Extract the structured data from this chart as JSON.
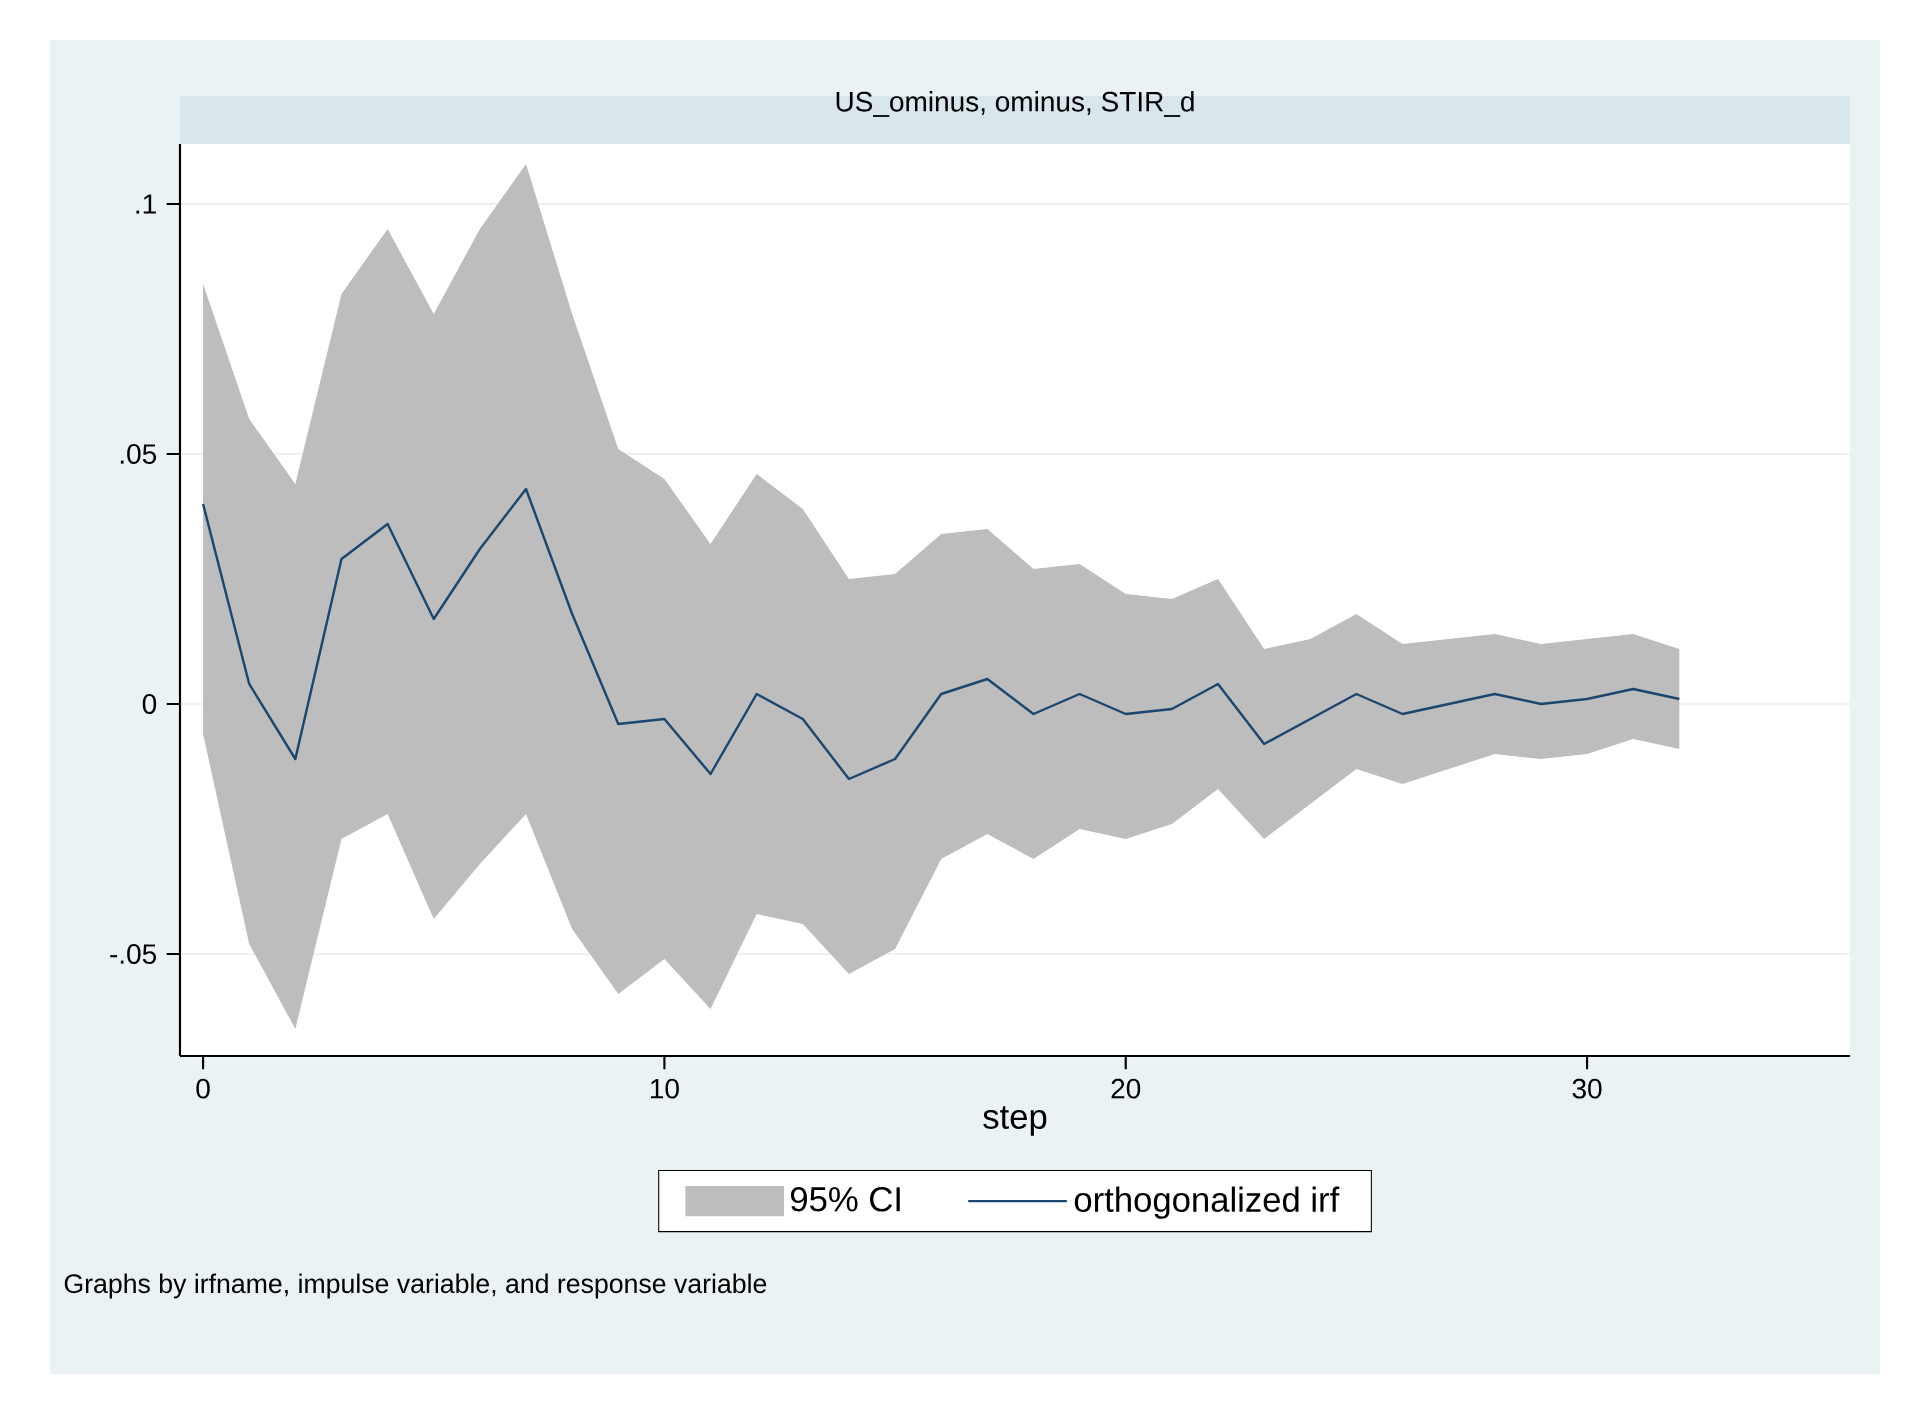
{
  "chart_data": {
    "type": "line",
    "title": "US_ominus, ominus, STIR_d",
    "xlabel": "step",
    "annotations": [
      "95% CI",
      "Graphs by irfname, impulse variable, and response variable"
    ],
    "x": [
      0,
      1,
      2,
      3,
      4,
      5,
      6,
      7,
      8,
      9,
      10,
      11,
      12,
      13,
      14,
      15,
      16,
      17,
      18,
      19,
      20,
      21,
      22,
      23,
      24,
      25,
      26,
      27,
      28,
      29,
      30,
      31,
      32
    ],
    "series": [
      {
        "name": "orthogonalized irf",
        "color": "#1a476f",
        "values": [
          0.04,
          0.004,
          -0.011,
          0.029,
          0.036,
          0.017,
          0.031,
          0.043,
          0.018,
          -0.004,
          -0.003,
          -0.014,
          0.002,
          -0.003,
          -0.015,
          -0.011,
          0.002,
          0.005,
          -0.002,
          0.002,
          -0.002,
          -0.001,
          0.004,
          -0.008,
          -0.003,
          0.002,
          -0.002,
          0.0,
          0.002,
          0.0,
          0.001,
          0.003,
          0.001
        ],
        "upper": [
          0.084,
          0.057,
          0.044,
          0.082,
          0.095,
          0.078,
          0.095,
          0.108,
          0.078,
          0.051,
          0.045,
          0.032,
          0.046,
          0.039,
          0.025,
          0.026,
          0.034,
          0.035,
          0.027,
          0.028,
          0.022,
          0.021,
          0.025,
          0.011,
          0.013,
          0.018,
          0.012,
          0.013,
          0.014,
          0.012,
          0.013,
          0.014,
          0.011
        ],
        "lower": [
          -0.006,
          -0.048,
          -0.065,
          -0.027,
          -0.022,
          -0.043,
          -0.032,
          -0.022,
          -0.045,
          -0.058,
          -0.051,
          -0.061,
          -0.042,
          -0.044,
          -0.054,
          -0.049,
          -0.031,
          -0.026,
          -0.031,
          -0.025,
          -0.027,
          -0.024,
          -0.017,
          -0.027,
          -0.02,
          -0.013,
          -0.016,
          -0.013,
          -0.01,
          -0.011,
          -0.01,
          -0.007,
          -0.009
        ]
      }
    ],
    "xlim": [
      -0.5,
      35.7
    ],
    "ylim": [
      -0.0704,
      0.112
    ],
    "xticks": [
      0,
      10,
      20,
      30
    ],
    "yticks": [
      {
        "value": -0.05,
        "label": "-.05"
      },
      {
        "value": 0,
        "label": "0"
      },
      {
        "value": 0.05,
        "label": ".05"
      },
      {
        "value": 0.1,
        "label": ".1"
      }
    ],
    "grid": "y",
    "legend": "bottom"
  }
}
